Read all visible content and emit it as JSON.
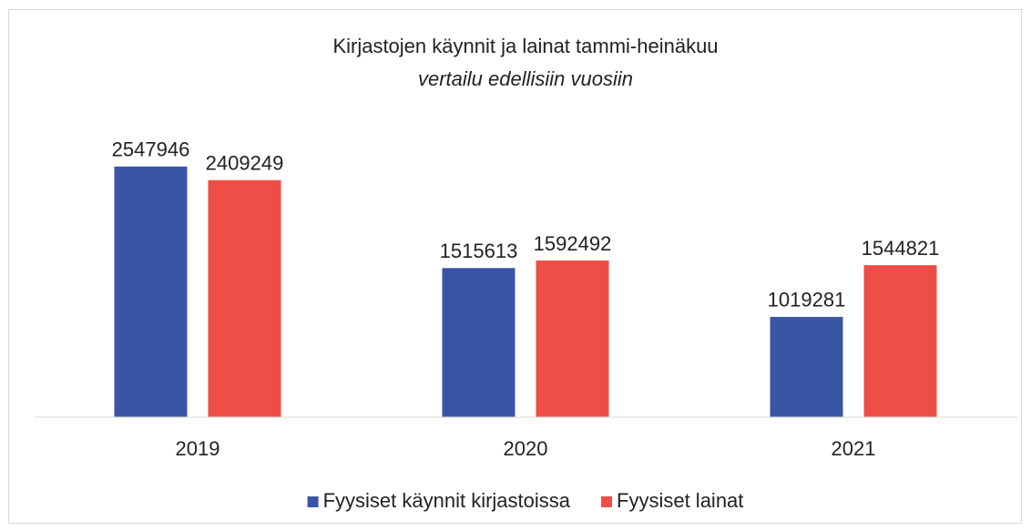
{
  "chart_data": {
    "type": "bar",
    "title": "Kirjastojen käynnit ja lainat tammi-heinäkuu",
    "subtitle": "vertailu edellisiin vuosiin",
    "categories": [
      "2019",
      "2020",
      "2021"
    ],
    "series": [
      {
        "name": "Fyysiset käynnit kirjastoissa",
        "color": "#3b55a5",
        "values": [
          2547946,
          1515613,
          1019281
        ]
      },
      {
        "name": "Fyysiset lainat",
        "color": "#ee4e47",
        "values": [
          2409249,
          1592492,
          1544821
        ]
      }
    ],
    "ylim": [
      0,
      3000000
    ],
    "legend": "bottom"
  }
}
